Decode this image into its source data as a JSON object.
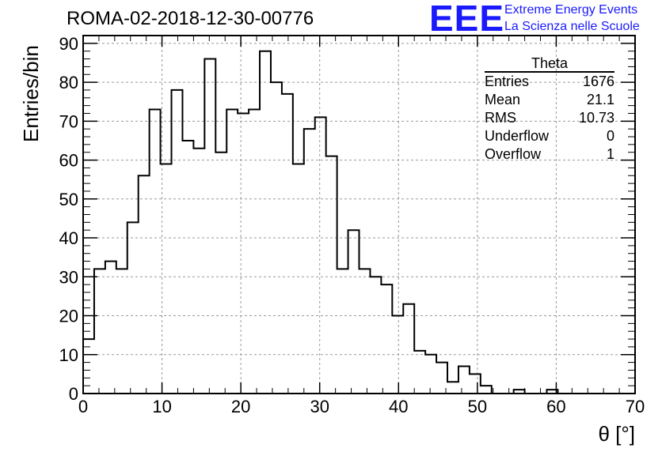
{
  "header": {
    "title": "ROMA-02-2018-12-30-00776",
    "logo_text": "EEE",
    "logo_line1": "Extreme Energy Events",
    "logo_line2": "La Scienza nelle Scuole",
    "logo_color": "#1a1aff"
  },
  "stats_box": {
    "title": "Theta",
    "rows": [
      {
        "label": "Entries",
        "value": "1676"
      },
      {
        "label": "Mean",
        "value": "21.1"
      },
      {
        "label": "RMS",
        "value": "10.73"
      },
      {
        "label": "Underflow",
        "value": "0"
      },
      {
        "label": "Overflow",
        "value": "1"
      }
    ]
  },
  "chart_data": {
    "type": "histogram",
    "xlabel": "θ [°]",
    "ylabel": "Entries/bin",
    "xlim": [
      0,
      70
    ],
    "ylim": [
      0,
      92
    ],
    "grid": true,
    "bin_width": 1.4,
    "x_ticks": [
      "0",
      "10",
      "20",
      "30",
      "40",
      "50",
      "60",
      "70"
    ],
    "y_ticks": [
      "0",
      "10",
      "20",
      "30",
      "40",
      "50",
      "60",
      "70",
      "80",
      "90"
    ],
    "values": [
      14,
      32,
      34,
      32,
      44,
      56,
      73,
      59,
      78,
      65,
      63,
      86,
      62,
      73,
      72,
      73,
      88,
      80,
      77,
      59,
      68,
      71,
      61,
      32,
      42,
      32,
      30,
      28,
      20,
      23,
      11,
      10,
      8,
      3,
      7,
      5,
      2,
      0,
      0,
      1,
      0,
      0,
      1,
      0,
      0,
      0,
      0,
      0,
      0,
      0
    ]
  }
}
